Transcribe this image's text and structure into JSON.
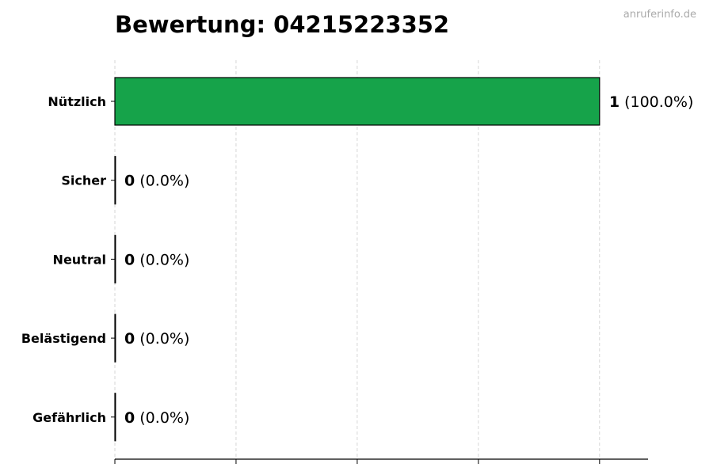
{
  "watermark": "anruferinfo.de",
  "chart_data": {
    "type": "bar",
    "orientation": "horizontal",
    "title": "Bewertung: 04215223352",
    "categories": [
      "Nützlich",
      "Sicher",
      "Neutral",
      "Belästigend",
      "Gefährlich"
    ],
    "values": [
      1,
      0,
      0,
      0,
      0
    ],
    "percent_labels": [
      "(100.0%)",
      "(0.0%)",
      "(0.0%)",
      "(0.0%)",
      "(0.0%)"
    ],
    "xlim": [
      0,
      1.1
    ],
    "xticks": [
      0,
      0.25,
      0.5,
      0.75,
      1.0
    ],
    "xtick_labels_shown": false,
    "grid": "x-dashed",
    "colors": {
      "bar": "#16a34a",
      "edge": "#000000",
      "grid": "#cccccc"
    }
  }
}
